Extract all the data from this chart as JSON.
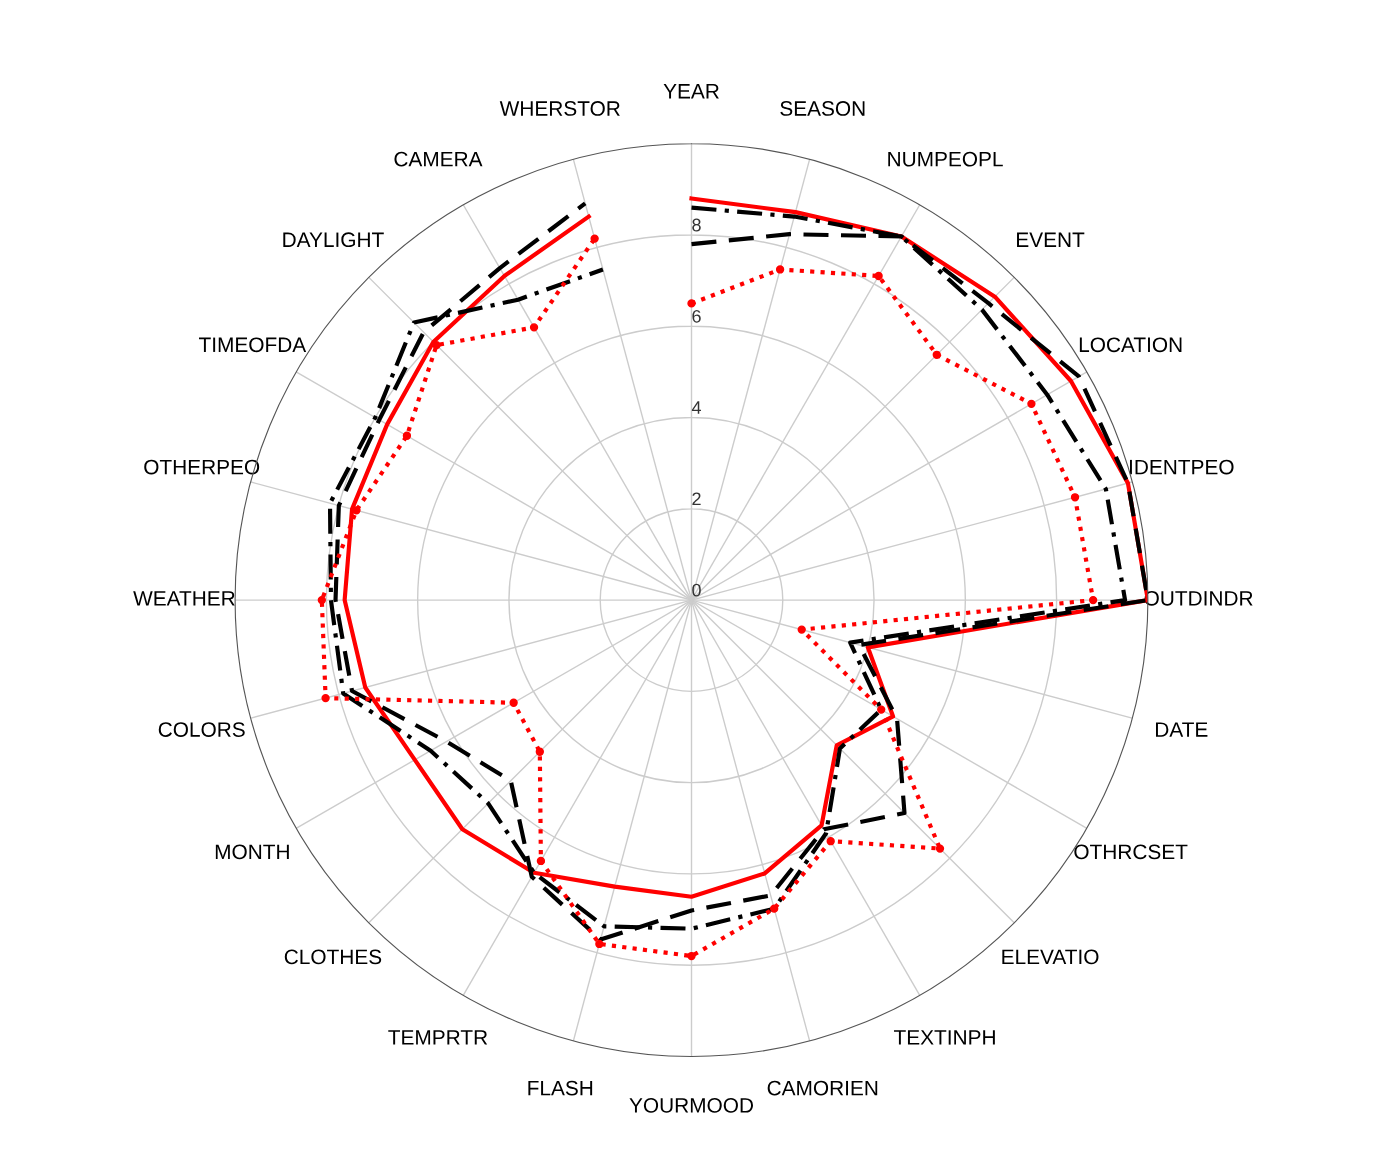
{
  "chart_data": {
    "type": "radar",
    "categories": [
      "YEAR",
      "SEASON",
      "NUMPEOPL",
      "EVENT",
      "LOCATION",
      "IDENTPEO",
      "OUTDINDR",
      "DATE",
      "OTHRCSET",
      "ELEVATIO",
      "TEXTINPH",
      "CAMORIEN",
      "YOURMOOD",
      "FLASH",
      "TEMPRTR",
      "CLOTHES",
      "MONTH",
      "COLORS",
      "WEATHER",
      "OTHERPEO",
      "TIMEOFDA",
      "DAYLIGHT",
      "CAMERA",
      "WHERSTOR"
    ],
    "ylim": [
      0,
      10
    ],
    "yticks": [
      0,
      2,
      4,
      6,
      8
    ],
    "grid": true,
    "series": [
      {
        "color": "#ff0000",
        "line_style": "solid",
        "marker": "none",
        "values": [
          8.8,
          8.8,
          9.2,
          9.4,
          9.6,
          9.9,
          10,
          4.0,
          5.1,
          4.5,
          5.7,
          6.2,
          6.5,
          6.5,
          6.9,
          7.1,
          7.0,
          7.4,
          7.6,
          7.7,
          7.7,
          8.0,
          8.2,
          8.7
        ]
      },
      {
        "color": "#000000",
        "line_style": "dashed",
        "marker": "none",
        "values": [
          7.8,
          8.3,
          9.2,
          9.2,
          9.8,
          9.9,
          10,
          3.8,
          5.2,
          6.6,
          5.8,
          6.7,
          6.8,
          7.7,
          7.0,
          5.6,
          6.2,
          7.7,
          7.8,
          8.0,
          7.9,
          8.3,
          8.4,
          9.0
        ]
      },
      {
        "color": "#000000",
        "line_style": "dashdot",
        "marker": "none",
        "values": [
          8.6,
          8.7,
          9.2,
          9.0,
          9.0,
          9.4,
          9.5,
          3.6,
          4.8,
          4.6,
          5.9,
          7.0,
          7.2,
          7.4,
          6.9,
          6.3,
          6.6,
          7.9,
          7.9,
          8.2,
          8.0,
          8.6,
          7.6,
          7.5
        ]
      },
      {
        "color": "#ff0000",
        "line_style": "dotted",
        "marker": "circle",
        "values": [
          6.5,
          7.5,
          8.2,
          7.6,
          8.6,
          8.7,
          8.8,
          2.5,
          4.8,
          7.7,
          6.1,
          7.0,
          7.8,
          7.8,
          6.6,
          4.7,
          4.5,
          8.3,
          8.1,
          7.6,
          7.2,
          7.9,
          6.9,
          8.2
        ]
      }
    ]
  }
}
